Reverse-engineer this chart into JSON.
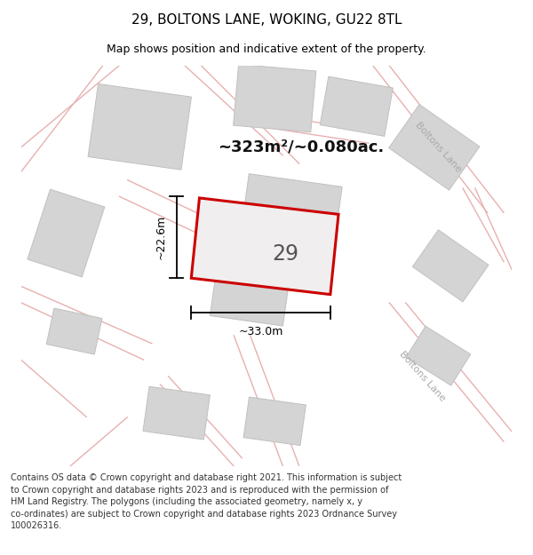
{
  "title": "29, BOLTONS LANE, WOKING, GU22 8TL",
  "subtitle": "Map shows position and indicative extent of the property.",
  "area_text": "~323m²/~0.080ac.",
  "property_number": "29",
  "dim_width": "~33.0m",
  "dim_height": "~22.6m",
  "footer_text": "Contains OS data © Crown copyright and database right 2021. This information is subject\nto Crown copyright and database rights 2023 and is reproduced with the permission of\nHM Land Registry. The polygons (including the associated geometry, namely x, y\nco-ordinates) are subject to Crown copyright and database rights 2023 Ordnance Survey\n100026316.",
  "bg_color": "#f5eeee",
  "road_color": "#e8b0b0",
  "road_lw": 1.0,
  "building_fc": "#d4d4d4",
  "building_ec": "#c0c0c0",
  "property_ec": "#cc0000",
  "property_fc": "#f0eeee",
  "dim_color": "#000000",
  "road_label_color": "#aaaaaa",
  "title_fontsize": 11,
  "subtitle_fontsize": 9,
  "area_fontsize": 13,
  "number_fontsize": 17,
  "dim_fontsize": 9,
  "road_label_fontsize": 8,
  "footer_fontsize": 7.0
}
